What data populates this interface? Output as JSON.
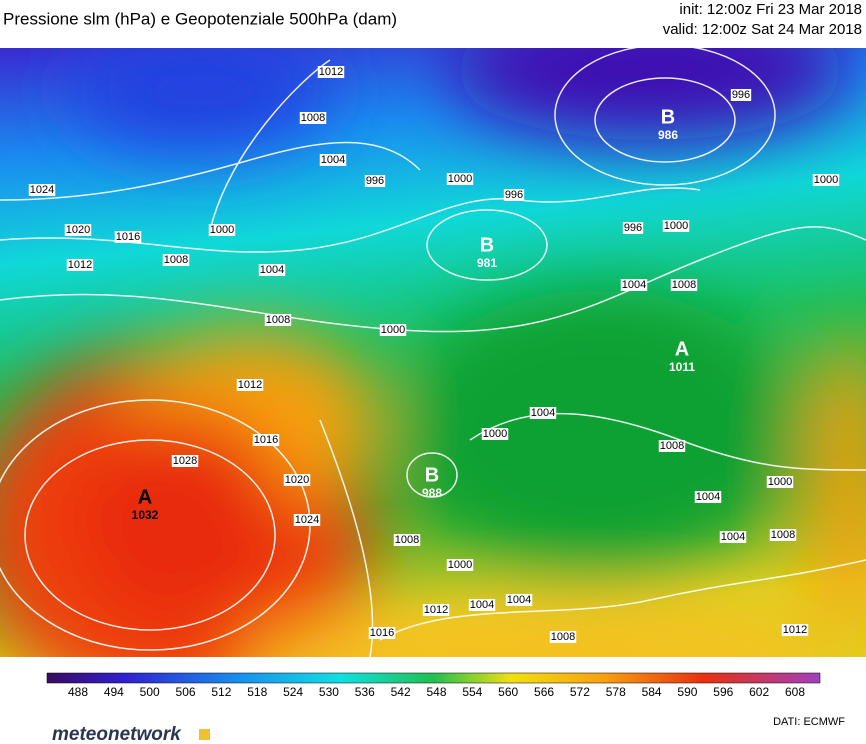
{
  "header": {
    "title": "Pressione slm (hPa) e Geopotenziale 500hPa (dam)",
    "init": "init: 12:00z Fri 23 Mar 2018",
    "valid": "valid: 12:00z Sat 24 Mar 2018"
  },
  "centers": [
    {
      "letter": "A",
      "value": "1032"
    },
    {
      "letter": "B",
      "value": "986"
    },
    {
      "letter": "B",
      "value": "981"
    },
    {
      "letter": "B",
      "value": "988"
    },
    {
      "letter": "A",
      "value": "1011"
    }
  ],
  "isobar_labels": [
    "1012",
    "1008",
    "1004",
    "996",
    "1000",
    "996",
    "1000",
    "1024",
    "1020",
    "1016",
    "1012",
    "1008",
    "1004",
    "1008",
    "1000",
    "1012",
    "1016",
    "1028",
    "1020",
    "1024",
    "1008",
    "1000",
    "1004",
    "1004",
    "1012",
    "1016",
    "1008",
    "1000",
    "1004",
    "1008",
    "1000",
    "1004",
    "1004",
    "1008",
    "1012",
    "1000",
    "1008",
    "996",
    "1004",
    "996",
    "1000"
  ],
  "colorbar": {
    "labels": [
      "488",
      "494",
      "500",
      "506",
      "512",
      "518",
      "524",
      "530",
      "536",
      "542",
      "548",
      "554",
      "560",
      "566",
      "572",
      "578",
      "584",
      "590",
      "596",
      "602",
      "608"
    ]
  },
  "footer": {
    "logo": "meteonetwork",
    "source": "DATI:  ECMWF"
  }
}
